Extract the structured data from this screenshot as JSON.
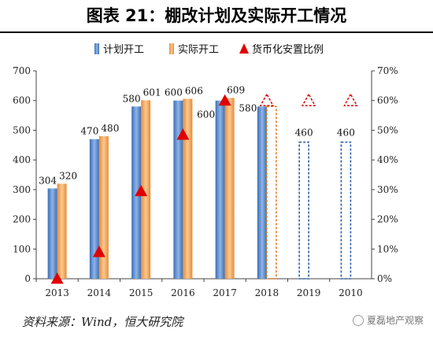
{
  "title": "图表 21：棚改计划及实际开工情况",
  "source": "资料来源：Wind，恒大研究院",
  "watermark": "夏磊地产观察",
  "chart_data": {
    "type": "bar",
    "categories": [
      "2013",
      "2014",
      "2015",
      "2016",
      "2017",
      "2018",
      "2019",
      "2010"
    ],
    "series": [
      {
        "name": "计划开工",
        "axis": "left",
        "values": [
          304,
          470,
          580,
          600,
          600,
          580,
          460,
          460
        ],
        "dashed": [
          false,
          false,
          false,
          false,
          false,
          false,
          true,
          true
        ],
        "labels": [
          "304",
          "470",
          "580",
          "600",
          "600",
          "580",
          "460",
          "460"
        ],
        "color": "#5b8fd1"
      },
      {
        "name": "实际开工",
        "axis": "left",
        "values": [
          320,
          480,
          601,
          606,
          609,
          580,
          null,
          null
        ],
        "dashed": [
          false,
          false,
          false,
          false,
          false,
          true,
          false,
          false
        ],
        "labels": [
          "320",
          "480",
          "601",
          "606",
          "609",
          "",
          "",
          ""
        ],
        "color": "#f5a85a"
      },
      {
        "name": "货币化安置比例",
        "axis": "right",
        "type": "scatter",
        "marker": "triangle",
        "values": [
          0.0,
          0.09,
          0.295,
          0.485,
          0.6,
          0.6,
          0.6,
          0.6
        ],
        "dashed": [
          false,
          false,
          false,
          false,
          false,
          true,
          true,
          true
        ],
        "color": "#e00000"
      }
    ],
    "ylim": [
      0,
      700
    ],
    "yticks": [
      "0",
      "100",
      "200",
      "300",
      "400",
      "500",
      "600",
      "700"
    ],
    "y2lim": [
      0,
      0.7
    ],
    "y2ticks": [
      "0%",
      "10%",
      "20%",
      "30%",
      "40%",
      "50%",
      "60%",
      "70%"
    ],
    "legend_position": "top-center",
    "grid": false
  }
}
